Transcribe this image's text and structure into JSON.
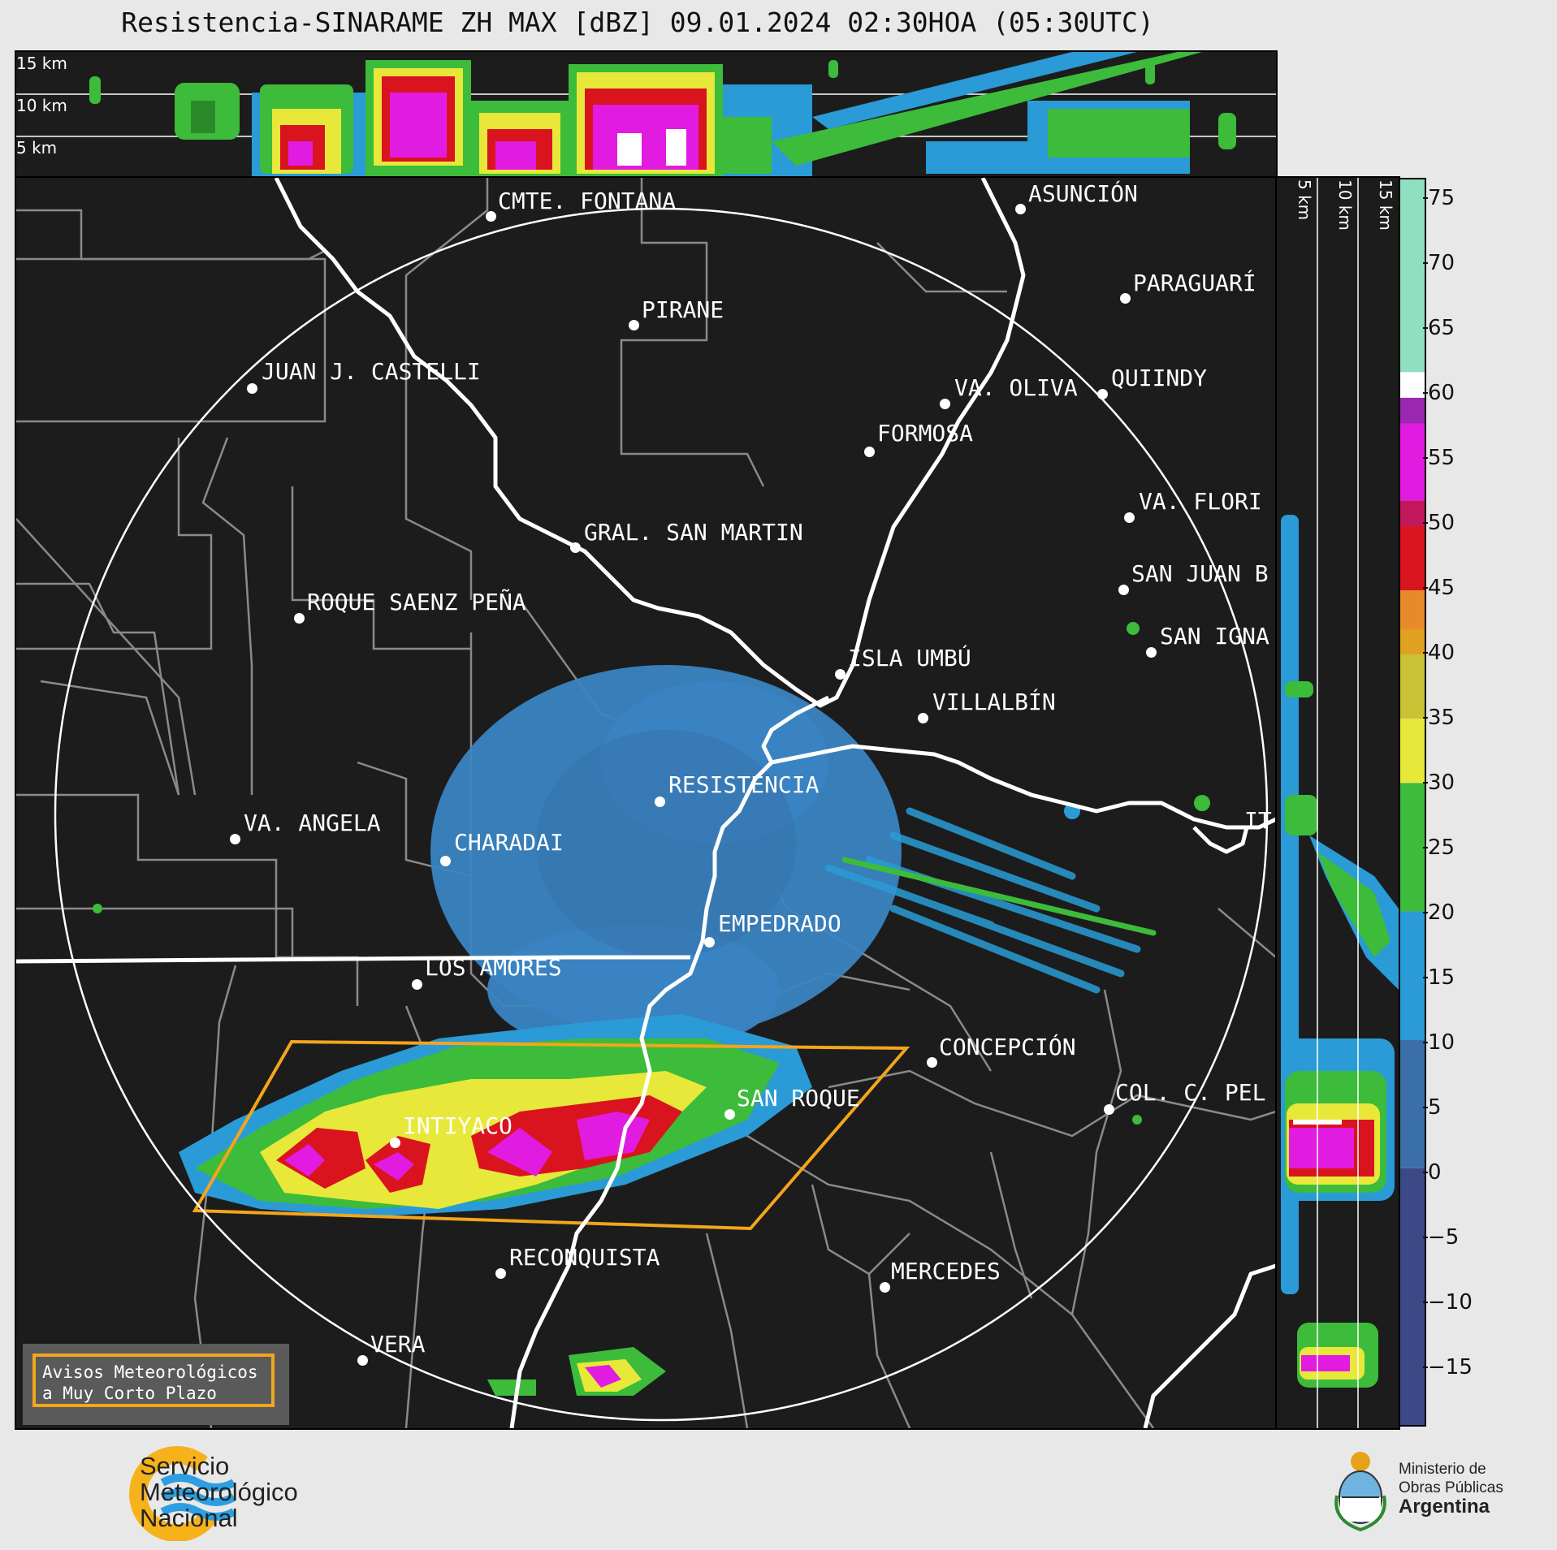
{
  "title": "Resistencia-SINARAME ZH MAX [dBZ] 09.01.2024 02:30HOA (05:30UTC)",
  "height_labels": [
    "15 km",
    "10 km",
    "5 km"
  ],
  "side_labels": [
    "5 km",
    "10 km",
    "15 km"
  ],
  "colorbar": {
    "ticks": [
      "75",
      "70",
      "65",
      "60",
      "55",
      "50",
      "45",
      "40",
      "35",
      "30",
      "25",
      "20",
      "15",
      "10",
      "5",
      "0",
      "−5",
      "−10",
      "−15"
    ],
    "bands": [
      {
        "from": -20,
        "to": 0,
        "color": "#3b4a86"
      },
      {
        "from": 0,
        "to": 10,
        "color": "#3a6fa8"
      },
      {
        "from": 10,
        "to": 20,
        "color": "#2a9bd6"
      },
      {
        "from": 20,
        "to": 30,
        "color": "#3dbb3a"
      },
      {
        "from": 30,
        "to": 35,
        "color": "#e8e83a"
      },
      {
        "from": 35,
        "to": 40,
        "color": "#c9c234"
      },
      {
        "from": 40,
        "to": 42,
        "color": "#e0a020"
      },
      {
        "from": 42,
        "to": 45,
        "color": "#e8892a"
      },
      {
        "from": 45,
        "to": 50,
        "color": "#d9141e"
      },
      {
        "from": 50,
        "to": 52,
        "color": "#c2185b"
      },
      {
        "from": 52,
        "to": 58,
        "color": "#e21be0"
      },
      {
        "from": 58,
        "to": 60,
        "color": "#9c27b0"
      },
      {
        "from": 60,
        "to": 62,
        "color": "#ffffff"
      },
      {
        "from": 62,
        "to": 77,
        "color": "#8fe0c0"
      }
    ]
  },
  "cities": [
    {
      "name": "CMTE. FONTANA"
    },
    {
      "name": "ASUNCIÓN"
    },
    {
      "name": "PIRANE"
    },
    {
      "name": "PARAGUARÍ"
    },
    {
      "name": "JUAN J. CASTELLI"
    },
    {
      "name": "QUIINDY"
    },
    {
      "name": "VA. OLIVA"
    },
    {
      "name": "FORMOSA"
    },
    {
      "name": "VA. FLORI"
    },
    {
      "name": "GRAL. SAN MARTIN"
    },
    {
      "name": "SAN JUAN B"
    },
    {
      "name": "ROQUE SAENZ PEÑA"
    },
    {
      "name": "SAN IGNA"
    },
    {
      "name": "ISLA UMBÚ"
    },
    {
      "name": "VILLALBÍN"
    },
    {
      "name": "RESISTENCIA"
    },
    {
      "name": "VA. ANGELA"
    },
    {
      "name": "CHARADAI"
    },
    {
      "name": "IT"
    },
    {
      "name": "EMPEDRADO"
    },
    {
      "name": "LOS AMORES"
    },
    {
      "name": "CONCEPCIÓN"
    },
    {
      "name": "SAN ROQUE"
    },
    {
      "name": "INTIYACO"
    },
    {
      "name": "COL. C. PEL"
    },
    {
      "name": "RECONQUISTA"
    },
    {
      "name": "MERCEDES"
    },
    {
      "name": "VERA"
    }
  ],
  "notice": {
    "line1": "Avisos Meteorológicos",
    "line2": "a Muy Corto Plazo"
  },
  "smn": {
    "line1": "Servicio",
    "line2": "Meteorológico",
    "line3": "Nacional"
  },
  "ministry": {
    "line1": "Ministerio de",
    "line2": "Obras Públicas",
    "line3": "Argentina"
  }
}
